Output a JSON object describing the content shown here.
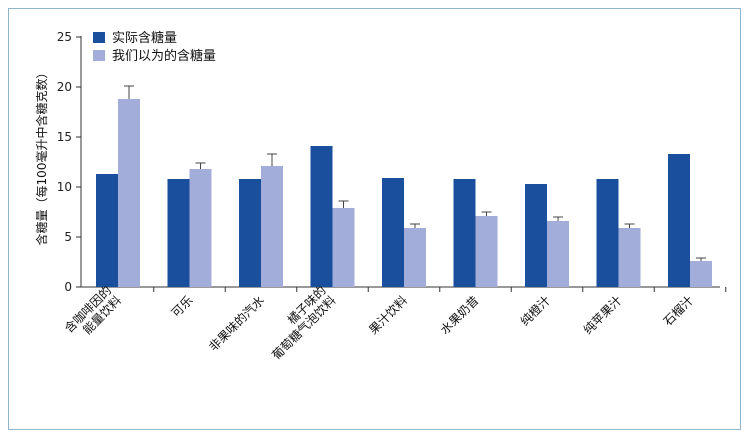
{
  "chart_data": {
    "type": "bar",
    "ylabel": "含糖量（每100毫升中含糖克数）",
    "ylim": [
      0,
      25
    ],
    "yticks": [
      0,
      5,
      10,
      15,
      20,
      25
    ],
    "categories": [
      [
        "含咖啡因的",
        "能量饮料"
      ],
      [
        "可乐"
      ],
      [
        "非果味的汽水"
      ],
      [
        "橘子味的",
        "葡萄糖气泡饮料"
      ],
      [
        "果汁饮料"
      ],
      [
        "水果奶昔"
      ],
      [
        "纯橙汁"
      ],
      [
        "纯苹果汁"
      ],
      [
        "石榴汁"
      ]
    ],
    "series": [
      {
        "name": "实际含糖量",
        "color": "#1a4f9e",
        "values": [
          11.3,
          10.8,
          10.8,
          14.1,
          10.9,
          10.8,
          10.3,
          10.8,
          13.3
        ]
      },
      {
        "name": "我们以为的含糖量",
        "color": "#a3add9",
        "values": [
          18.8,
          11.8,
          12.1,
          7.9,
          5.9,
          7.1,
          6.6,
          5.9,
          2.6
        ],
        "error": [
          1.3,
          0.6,
          1.2,
          0.7,
          0.4,
          0.4,
          0.4,
          0.4,
          0.3
        ]
      }
    ],
    "legend_position": "top-left",
    "grid": false
  }
}
